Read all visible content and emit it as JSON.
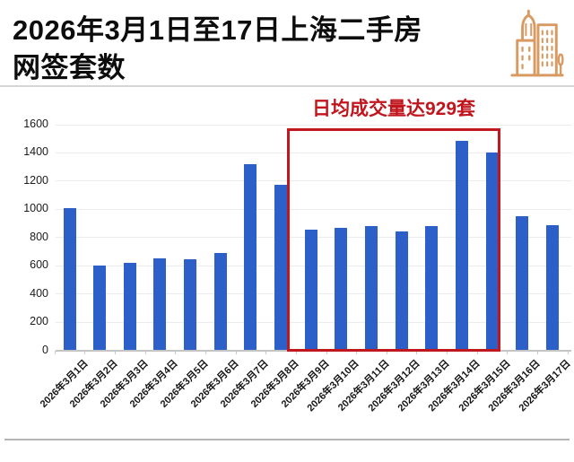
{
  "header": {
    "title_line1": "2026年3月1日至17日上海二手房",
    "title_line2": "网签套数",
    "icon": "city-buildings-icon"
  },
  "annotation": {
    "text": "日均成交量达929套"
  },
  "colors": {
    "bar_blue": "#2c5fc8",
    "highlight_red": "#c0181e",
    "annotation_red": "#c0151d",
    "icon_orange": "#d99a62",
    "title_text": "#0d0d0d"
  },
  "chart_data": {
    "type": "bar",
    "title": "2026年3月1日至17日上海二手房网签套数",
    "categories": [
      "2026年3月1日",
      "2026年3月2日",
      "2026年3月3日",
      "2026年3月4日",
      "2026年3月5日",
      "2026年3月6日",
      "2026年3月7日",
      "2026年3月8日",
      "2026年3月9日",
      "2026年3月10日",
      "2026年3月11日",
      "2026年3月12日",
      "2026年3月13日",
      "2026年3月14日",
      "2026年3月15日",
      "2026年3月16日",
      "2026年3月17日"
    ],
    "values": [
      1005,
      595,
      615,
      650,
      645,
      690,
      1315,
      1170,
      855,
      865,
      875,
      840,
      880,
      1485,
      1400,
      950,
      885
    ],
    "xlabel": "",
    "ylabel": "",
    "ylim": [
      0,
      1600
    ],
    "yticks": [
      0,
      200,
      400,
      600,
      800,
      1000,
      1200,
      1400,
      1600
    ],
    "grid": true,
    "legend": "none",
    "bar_color": "#2c5fc8",
    "highlight": {
      "label": "日均成交量达929套",
      "from_category": "2026年3月9日",
      "to_category": "2026年3月15日",
      "box_color": "#c0181e"
    }
  }
}
